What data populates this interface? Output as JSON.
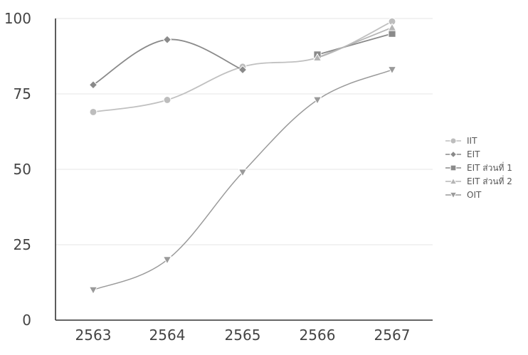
{
  "chart_data": {
    "type": "line",
    "categories": [
      "2563",
      "2564",
      "2565",
      "2566",
      "2567"
    ],
    "ylim": [
      0,
      100
    ],
    "yticks": [
      0,
      25,
      50,
      75,
      100
    ],
    "grid": true,
    "legend_position": "right",
    "series": [
      {
        "name": "IIT",
        "values": [
          69,
          73,
          84,
          87,
          99
        ],
        "color": "#bdbdbd",
        "marker": "circle"
      },
      {
        "name": "EIT",
        "values": [
          78,
          93,
          83,
          null,
          null
        ],
        "color": "#8a8a8a",
        "marker": "diamond"
      },
      {
        "name": "EIT ส่วนที่ 1",
        "values": [
          null,
          null,
          null,
          88,
          95
        ],
        "color": "#8a8a8a",
        "marker": "square"
      },
      {
        "name": "EIT ส่วนที่ 2",
        "values": [
          null,
          null,
          null,
          87,
          97
        ],
        "color": "#b5b5b5",
        "marker": "triangle-up"
      },
      {
        "name": "OIT",
        "values": [
          10,
          20,
          49,
          73,
          83
        ],
        "color": "#9a9a9a",
        "marker": "triangle-down"
      }
    ]
  }
}
